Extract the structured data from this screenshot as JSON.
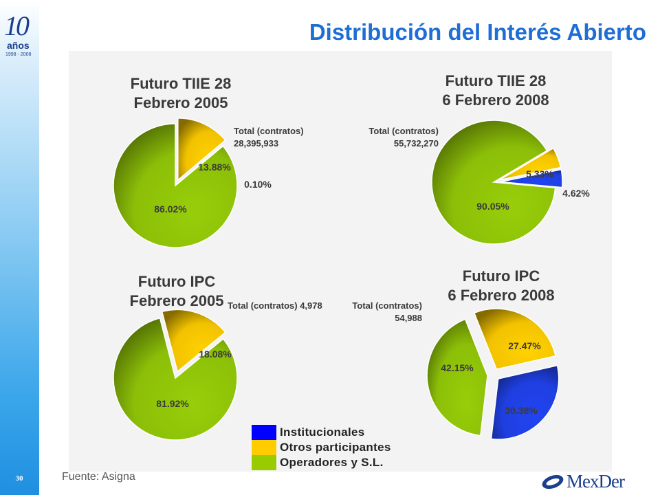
{
  "title": "Distribución del Interés Abierto",
  "logo": {
    "number": "10",
    "word": "años",
    "years": "1998 - 2008"
  },
  "page_number": "30",
  "source": "Fuente: Asigna",
  "brand": "MexDer",
  "colors": {
    "Institucionales": "#1f3fe0",
    "Otros participantes": "#f2c200",
    "Operadores y S.L.": "#8cbf08",
    "title": "#1f6ed4"
  },
  "legend": [
    {
      "label": "Institucionales",
      "color": "#0000ff"
    },
    {
      "label": "Otros participantes",
      "color": "#ffcc00"
    },
    {
      "label": "Operadores y S.L.",
      "color": "#99cc00"
    }
  ],
  "charts": [
    {
      "title": "Futuro TIIE 28\nFebrero 2005",
      "total": "Total (contratos)\n28,395,933"
    },
    {
      "title": "Futuro TIIE 28\n6 Febrero 2008",
      "total": "Total (contratos)\n55,732,270"
    },
    {
      "title": "Futuro IPC\nFebrero 2005",
      "total": "Total (contratos) 4,978"
    },
    {
      "title": "Futuro IPC\n6 Febrero 2008",
      "total": "Total (contratos)\n54,988"
    }
  ],
  "chart_data": [
    {
      "type": "pie",
      "title": "Futuro TIIE 28 Febrero 2005",
      "categories": [
        "Otros participantes",
        "Institucionales",
        "Operadores y S.L."
      ],
      "values": [
        13.88,
        0.1,
        86.02
      ],
      "labels": [
        "13.88%",
        "0.10%",
        "86.02%"
      ],
      "exploded": [
        "Otros participantes"
      ]
    },
    {
      "type": "pie",
      "title": "Futuro TIIE 28 6 Febrero 2008",
      "categories": [
        "Otros participantes",
        "Institucionales",
        "Operadores y S.L."
      ],
      "values": [
        5.33,
        4.62,
        90.05
      ],
      "labels": [
        "5.33%",
        "4.62%",
        "90.05%"
      ],
      "exploded": [
        "Otros participantes",
        "Institucionales"
      ]
    },
    {
      "type": "pie",
      "title": "Futuro IPC Febrero 2005",
      "categories": [
        "Otros participantes",
        "Operadores y S.L."
      ],
      "values": [
        18.08,
        81.92
      ],
      "labels": [
        "18.08%",
        "81.92%"
      ],
      "exploded": [
        "Otros participantes"
      ]
    },
    {
      "type": "pie",
      "title": "Futuro IPC 6 Febrero 2008",
      "categories": [
        "Otros participantes",
        "Institucionales",
        "Operadores y S.L."
      ],
      "values": [
        27.47,
        30.38,
        42.15
      ],
      "labels": [
        "27.47%",
        "30.38%",
        "42.15%"
      ],
      "exploded": [
        "Otros participantes",
        "Institucionales",
        "Operadores y S.L."
      ]
    }
  ]
}
